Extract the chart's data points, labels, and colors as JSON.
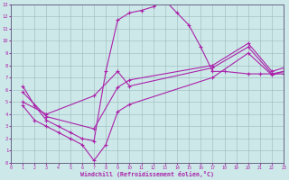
{
  "xlabel": "Windchill (Refroidissement éolien,°C)",
  "xlim": [
    0,
    23
  ],
  "ylim": [
    0,
    13
  ],
  "xticks": [
    0,
    1,
    2,
    3,
    4,
    5,
    6,
    7,
    8,
    9,
    10,
    11,
    12,
    13,
    14,
    15,
    16,
    17,
    18,
    19,
    20,
    21,
    22,
    23
  ],
  "yticks": [
    0,
    1,
    2,
    3,
    4,
    5,
    6,
    7,
    8,
    9,
    10,
    11,
    12,
    13
  ],
  "bg_color": "#cde8e8",
  "line_color": "#aa22aa",
  "grid_color": "#99bbbb",
  "line1_x": [
    1,
    2,
    3,
    4,
    5,
    6,
    7,
    8,
    9,
    10,
    11,
    12,
    13,
    14,
    15,
    16,
    17,
    18,
    20,
    21,
    22,
    23
  ],
  "line1_y": [
    6.3,
    4.7,
    3.5,
    3.0,
    2.5,
    2.0,
    1.8,
    7.5,
    11.7,
    12.3,
    12.5,
    12.8,
    13.3,
    12.3,
    11.3,
    9.5,
    7.5,
    7.5,
    7.3,
    7.3,
    7.3,
    7.3
  ],
  "line2_x": [
    1,
    3,
    7,
    9,
    10,
    17,
    20,
    22,
    23
  ],
  "line2_y": [
    5.0,
    4.0,
    5.5,
    7.5,
    6.3,
    7.8,
    9.5,
    7.3,
    7.5
  ],
  "line3_x": [
    1,
    2,
    3,
    4,
    5,
    6,
    7,
    8,
    9,
    10,
    17,
    20,
    22,
    23
  ],
  "line3_y": [
    4.7,
    3.5,
    3.0,
    2.5,
    2.0,
    1.5,
    0.2,
    1.5,
    4.2,
    4.8,
    7.0,
    9.0,
    7.2,
    7.5
  ],
  "line_upper_x": [
    1,
    3,
    7,
    9,
    10,
    17,
    20,
    22,
    23
  ],
  "line_upper_y": [
    5.8,
    3.8,
    2.8,
    6.2,
    6.8,
    8.0,
    9.8,
    7.5,
    7.8
  ]
}
